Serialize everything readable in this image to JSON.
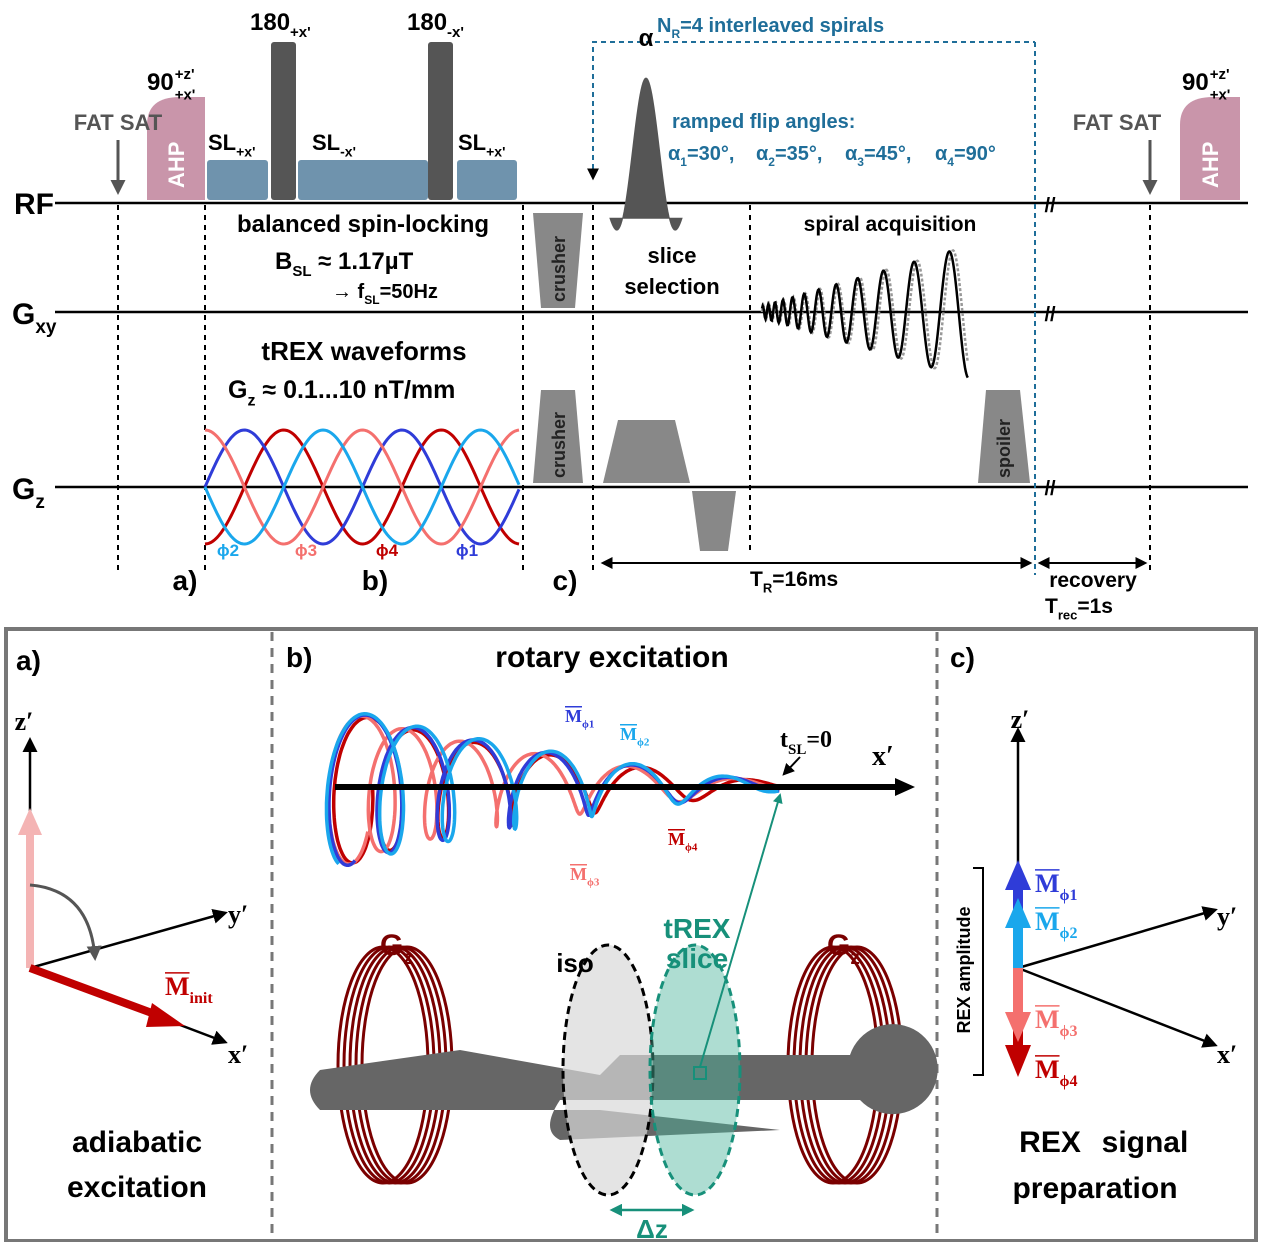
{
  "sequence": {
    "row_labels": {
      "rf": "RF",
      "gxy": {
        "base": "G",
        "sub": "xy"
      },
      "gz": {
        "base": "G",
        "sub": "z"
      }
    },
    "fat_sat": [
      "FAT SAT",
      "FAT SAT"
    ],
    "ahp": [
      "AHP",
      "AHP"
    ],
    "excitation": [
      {
        "base": "90",
        "sup": "+z'",
        "sub": "+x'"
      },
      {
        "base": "90",
        "sup": "+z'",
        "sub": "+x'"
      }
    ],
    "refocusing": [
      {
        "base": "180",
        "sub": "+x'"
      },
      {
        "base": "180",
        "sub": "-x'"
      }
    ],
    "spin_lock": [
      {
        "base": "SL",
        "sub": "+x'"
      },
      {
        "base": "SL",
        "sub": "-x'"
      },
      {
        "base": "SL",
        "sub": "+x'"
      }
    ],
    "interleaves": {
      "base": "N",
      "sub": "R",
      "rest": "=4 interleaved spirals"
    },
    "alpha": "α",
    "ramp_title": "ramped flip angles:",
    "flip_angles": [
      {
        "base": "α",
        "sub": "1",
        "rest": "=30°,"
      },
      {
        "base": "α",
        "sub": "2",
        "rest": "=35°,"
      },
      {
        "base": "α",
        "sub": "3",
        "rest": "=45°,"
      },
      {
        "base": "α",
        "sub": "4",
        "rest": "=90°"
      }
    ],
    "spin_locking_title": "balanced spin-locking",
    "b_sl": {
      "base": "B",
      "sub": "SL",
      "rest": " ≈ 1.17µT"
    },
    "f_sl": {
      "base": "→ f",
      "sub": "SL",
      "rest": "=50Hz"
    },
    "trex_title": "tREX waveforms",
    "gz_range": {
      "base": "G",
      "sub": "z",
      "rest": " ≈ 0.1...10 nT/mm"
    },
    "crusher": [
      "crusher",
      "crusher"
    ],
    "spoiler": "spoiler",
    "slice_selection": [
      "slice",
      "selection"
    ],
    "spiral": "spiral acquisition",
    "breaks": [
      "//",
      "//",
      "//"
    ],
    "phases": [
      "ϕ2",
      "ϕ3",
      "ϕ4",
      "ϕ1"
    ],
    "markers": [
      "a)",
      "b)",
      "c)"
    ],
    "tr": {
      "base": "T",
      "sub": "R",
      "rest": "=16ms"
    },
    "recovery": "recovery",
    "trec": {
      "base": "T",
      "sub": "rec",
      "rest": "=1s"
    }
  },
  "panel_a": {
    "label": "a)",
    "axes": [
      "z′",
      "y′",
      "x′"
    ],
    "m_init": {
      "base": "M",
      "sub": "init"
    },
    "caption": [
      "adiabatic",
      "excitation"
    ]
  },
  "panel_b": {
    "label": "b)",
    "title": "rotary excitation",
    "magnetization": [
      {
        "base": "M",
        "sub": "ϕ1"
      },
      {
        "base": "M",
        "sub": "ϕ2"
      },
      {
        "base": "M",
        "sub": "ϕ3"
      },
      {
        "base": "M",
        "sub": "ϕ4"
      }
    ],
    "t_sl": {
      "base": "t",
      "sub": "SL",
      "rest": "=0"
    },
    "axis": "x′",
    "coils": [
      {
        "base": "G",
        "sub": "z"
      },
      {
        "base": "G",
        "sub": "z"
      }
    ],
    "iso": "iso",
    "trex_slice": [
      "tREX",
      "slice"
    ],
    "dz": "Δz"
  },
  "panel_c": {
    "label": "c)",
    "axes": [
      "z′",
      "y′",
      "x′"
    ],
    "amplitude": "REX amplitude",
    "magnetization": [
      {
        "base": "M",
        "sub": "ϕ1"
      },
      {
        "base": "M",
        "sub": "ϕ2"
      },
      {
        "base": "M",
        "sub": "ϕ3"
      },
      {
        "base": "M",
        "sub": "ϕ4"
      }
    ],
    "caption": [
      "REX",
      "signal",
      "preparation"
    ]
  }
}
